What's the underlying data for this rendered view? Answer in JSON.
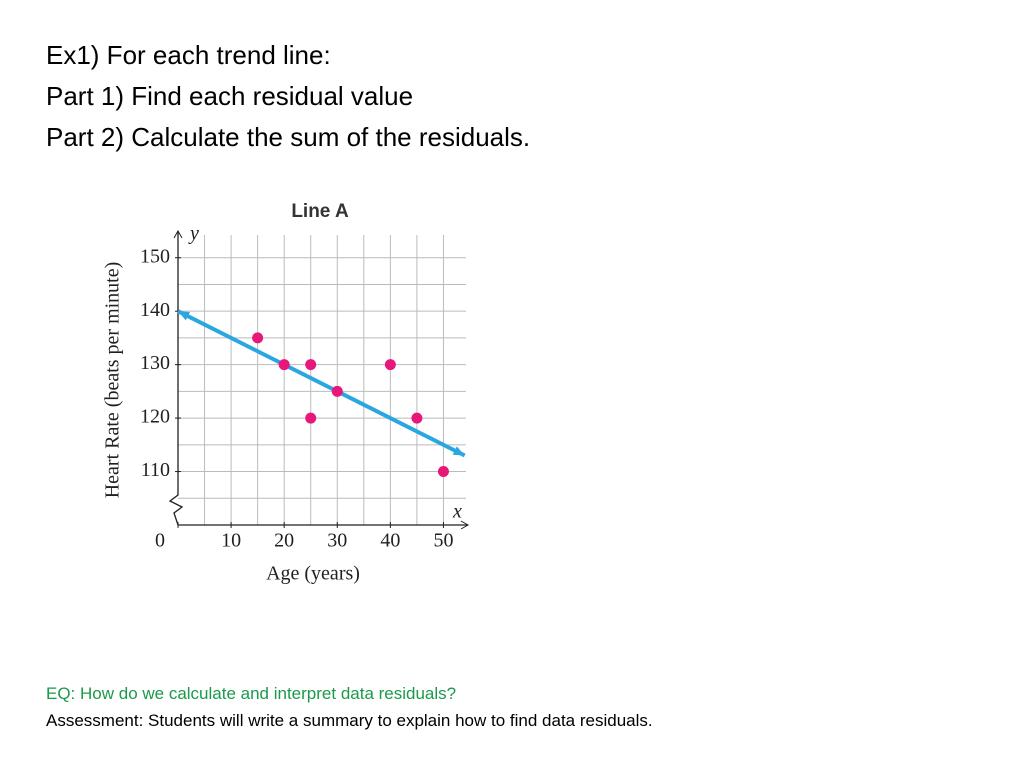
{
  "header": {
    "lines": [
      "Ex1)  For each trend line:",
      "Part 1) Find each residual value",
      "Part 2) Calculate the sum of the residuals."
    ]
  },
  "chart_data": {
    "type": "scatter",
    "title": "Line A",
    "x_label": "Age (years)",
    "y_label": "Heart Rate (beats per minute)",
    "x_axis_letter": "x",
    "y_axis_letter": "y",
    "x": [
      15,
      20,
      25,
      25,
      30,
      40,
      45,
      50
    ],
    "values": [
      135,
      130,
      130,
      120,
      125,
      130,
      120,
      110
    ],
    "color": "#e8177a",
    "trend_line": {
      "x": [
        0,
        54
      ],
      "y": [
        140,
        113
      ],
      "color": "#2aa6e0"
    },
    "xlim": [
      0,
      55
    ],
    "ylim": [
      100,
      155
    ],
    "xticks": [
      0,
      10,
      20,
      30,
      40,
      50
    ],
    "yticks": [
      110,
      120,
      130,
      140,
      150
    ],
    "grid": true,
    "minor_grid": 5
  },
  "footer": {
    "eq": "EQ: How do we calculate and interpret data residuals?",
    "assessment": "Assessment: Students will write a summary to explain how to find data residuals."
  }
}
